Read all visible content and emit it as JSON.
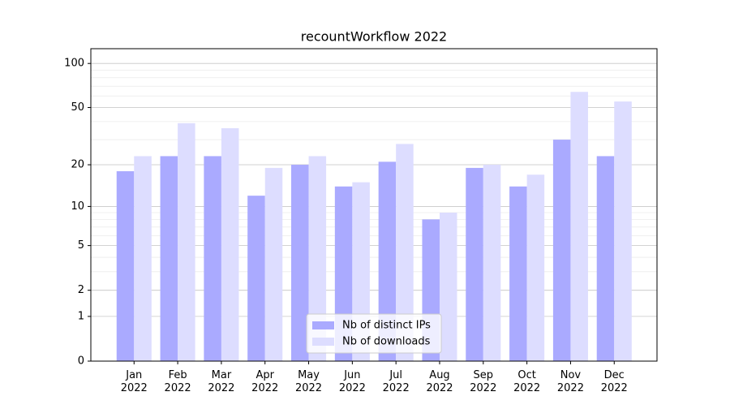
{
  "chart_data": {
    "type": "bar",
    "title": "recountWorkflow 2022",
    "categories": [
      "Jan 2022",
      "Feb 2022",
      "Mar 2022",
      "Apr 2022",
      "May 2022",
      "Jun 2022",
      "Jul 2022",
      "Aug 2022",
      "Sep 2022",
      "Oct 2022",
      "Nov 2022",
      "Dec 2022"
    ],
    "series": [
      {
        "name": "Nb of distinct IPs",
        "color": "#aaaaff",
        "values": [
          18,
          23,
          23,
          12,
          20,
          14,
          21,
          8,
          19,
          14,
          30,
          23
        ]
      },
      {
        "name": "Nb of downloads",
        "color": "#ddddff",
        "values": [
          23,
          39,
          36,
          19,
          23,
          15,
          28,
          9,
          20,
          17,
          64,
          55
        ]
      }
    ],
    "yscale": "log1p",
    "ylim": [
      0,
      126
    ],
    "yticks": [
      0,
      1,
      2,
      5,
      10,
      20,
      50,
      100
    ],
    "grid": true,
    "minor_grid": true,
    "legend": "lower center"
  }
}
